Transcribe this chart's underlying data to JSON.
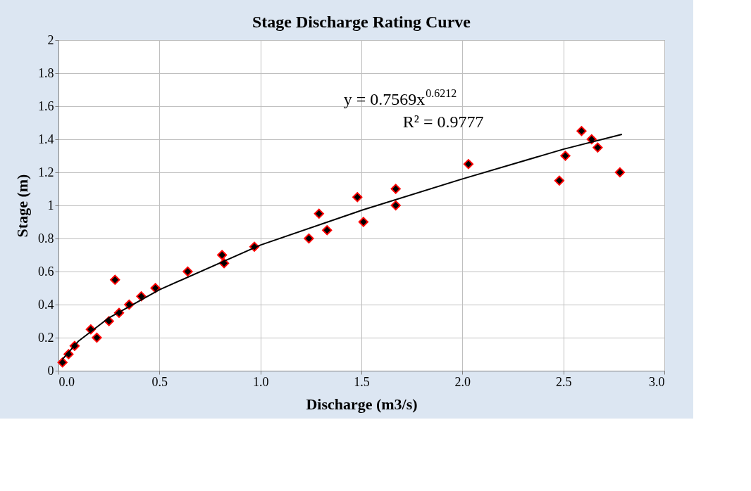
{
  "chart_data": {
    "type": "scatter",
    "title": "Stage Discharge Rating Curve",
    "xlabel": "Discharge (m3/s)",
    "ylabel": "Stage (m)",
    "xlim": [
      0,
      3
    ],
    "xticks": [
      {
        "value": 0,
        "label": "0.0"
      },
      0.5,
      {
        "value": 1,
        "label": "1.0"
      },
      1.5,
      {
        "value": 2,
        "label": "2.0"
      },
      2.5,
      {
        "value": 3,
        "label": "3.0"
      }
    ],
    "ylim": [
      0,
      2
    ],
    "yticks": [
      0,
      0.2,
      0.4,
      0.6,
      0.8,
      1,
      1.2,
      1.4,
      1.6,
      1.8,
      2
    ],
    "grid": true,
    "legend": false,
    "series": [
      {
        "marker": "diamond",
        "color": "#000000",
        "x": [
          0.02,
          0.05,
          0.08,
          0.16,
          0.19,
          0.25,
          0.28,
          0.3,
          0.35,
          0.41,
          0.48,
          0.64,
          0.81,
          0.82,
          0.97,
          1.24,
          1.29,
          1.33,
          1.48,
          1.51,
          1.67,
          1.67,
          2.03,
          2.48,
          2.51,
          2.59,
          2.64,
          2.67,
          2.78
        ],
        "values": [
          0.05,
          0.1,
          0.15,
          0.25,
          0.2,
          0.3,
          0.55,
          0.35,
          0.4,
          0.45,
          0.5,
          0.6,
          0.7,
          0.65,
          0.75,
          0.8,
          0.95,
          0.85,
          1.05,
          0.9,
          1.0,
          1.1,
          1.25,
          1.15,
          1.3,
          1.45,
          1.4,
          1.35,
          1.2
        ]
      },
      {
        "type": "line",
        "marker": "none",
        "line_style": "solid",
        "color": "#000000",
        "x": [
          0.02,
          0.1,
          0.25,
          0.5,
          1,
          1.5,
          2,
          2.5,
          2.79
        ],
        "values": [
          0.07,
          0.18,
          0.32,
          0.49,
          0.76,
          0.97,
          1.16,
          1.34,
          1.43
        ]
      }
    ],
    "annotations": [
      "y = 0.7569x$^{0.6212}$",
      "R² = 0.9777"
    ]
  }
}
